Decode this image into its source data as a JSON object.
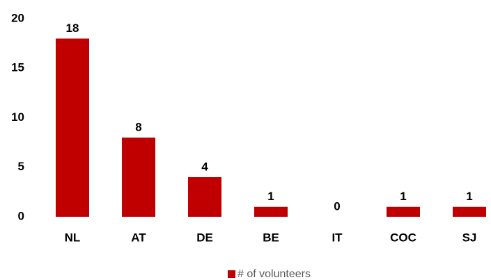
{
  "chart_data": {
    "type": "bar",
    "categories": [
      "NL",
      "AT",
      "DE",
      "BE",
      "IT",
      "COC",
      "SJ"
    ],
    "series": [
      {
        "name": "# of volunteers",
        "color": "#c00000",
        "values": [
          18,
          8,
          4,
          1,
          0,
          1,
          1
        ]
      }
    ],
    "ylim": [
      0,
      20
    ],
    "yticks": [
      0,
      5,
      10,
      15,
      20
    ],
    "grid": false,
    "legend": "bottom",
    "data_labels": true
  }
}
